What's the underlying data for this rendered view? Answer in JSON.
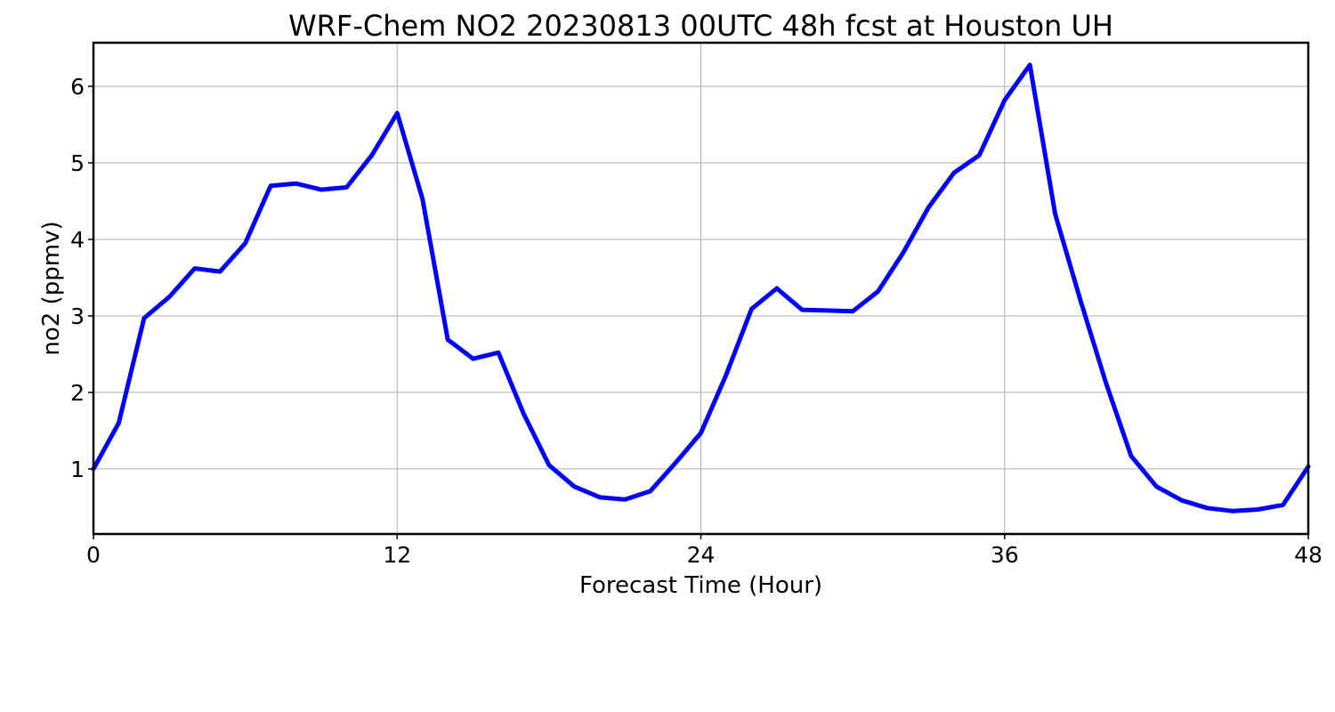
{
  "chart_data": {
    "type": "line",
    "title": "WRF-Chem NO2  20230813 00UTC 48h fcst at Houston UH",
    "xlabel": "Forecast Time (Hour)",
    "ylabel": "no2  (ppmv)",
    "xlim": [
      0,
      48
    ],
    "ylim": [
      0.15,
      6.57
    ],
    "xticks": [
      0,
      12,
      24,
      36,
      48
    ],
    "yticks": [
      1,
      2,
      3,
      4,
      5,
      6
    ],
    "grid": true,
    "series": [
      {
        "color": "#0000ff",
        "x": [
          0,
          1,
          2,
          3,
          4,
          5,
          6,
          7,
          8,
          9,
          10,
          11,
          12,
          13,
          14,
          15,
          16,
          17,
          18,
          19,
          20,
          21,
          22,
          23,
          24,
          25,
          26,
          27,
          28,
          29,
          30,
          31,
          32,
          33,
          34,
          35,
          36,
          37,
          38,
          39,
          40,
          41,
          42,
          43,
          44,
          45,
          46,
          47,
          48
        ],
        "values": [
          1.0,
          1.6,
          2.97,
          3.25,
          3.62,
          3.58,
          3.95,
          4.7,
          4.73,
          4.65,
          4.68,
          5.1,
          5.65,
          4.53,
          2.69,
          2.44,
          2.52,
          1.72,
          1.05,
          0.77,
          0.63,
          0.6,
          0.71,
          1.08,
          1.47,
          2.23,
          3.09,
          3.36,
          3.08,
          3.07,
          3.06,
          3.32,
          3.83,
          4.42,
          4.87,
          5.1,
          5.82,
          6.28,
          4.33,
          3.2,
          2.13,
          1.17,
          0.77,
          0.59,
          0.49,
          0.45,
          0.47,
          0.53,
          1.03
        ]
      }
    ]
  }
}
